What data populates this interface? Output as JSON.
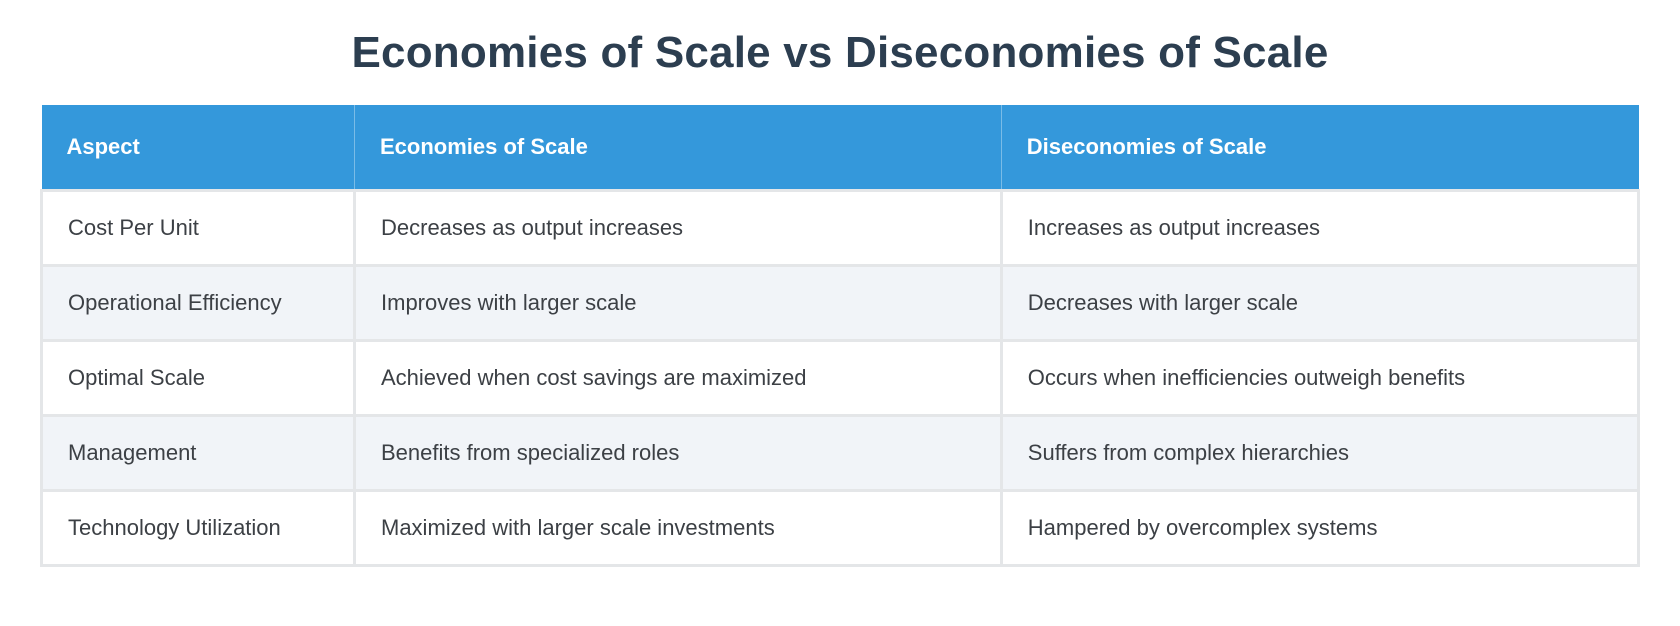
{
  "chart_data": {
    "type": "table",
    "title": "Economies of Scale vs Diseconomies of Scale",
    "columns": [
      "Aspect",
      "Economies of Scale",
      "Diseconomies of Scale"
    ],
    "rows": [
      [
        "Cost Per Unit",
        "Decreases as output increases",
        "Increases as output increases"
      ],
      [
        "Operational Efficiency",
        "Improves with larger scale",
        "Decreases with larger scale"
      ],
      [
        "Optimal Scale",
        "Achieved when cost savings are maximized",
        "Occurs when inefficiencies outweigh benefits"
      ],
      [
        "Management",
        "Benefits from specialized roles",
        "Suffers from complex hierarchies"
      ],
      [
        "Technology Utilization",
        "Maximized with larger scale investments",
        "Hampered by overcomplex systems"
      ]
    ],
    "layout": {
      "legend": "none",
      "grid": "cell-borders",
      "zebra_striping": true,
      "header_position": "top"
    },
    "colors": {
      "header_bg": "#3498db",
      "header_text": "#ffffff",
      "title_text": "#2c3e50",
      "row_bg": "#ffffff",
      "row_alt_bg": "#f1f4f8",
      "body_text": "#3c4045",
      "border": "#e4e6e8"
    }
  }
}
